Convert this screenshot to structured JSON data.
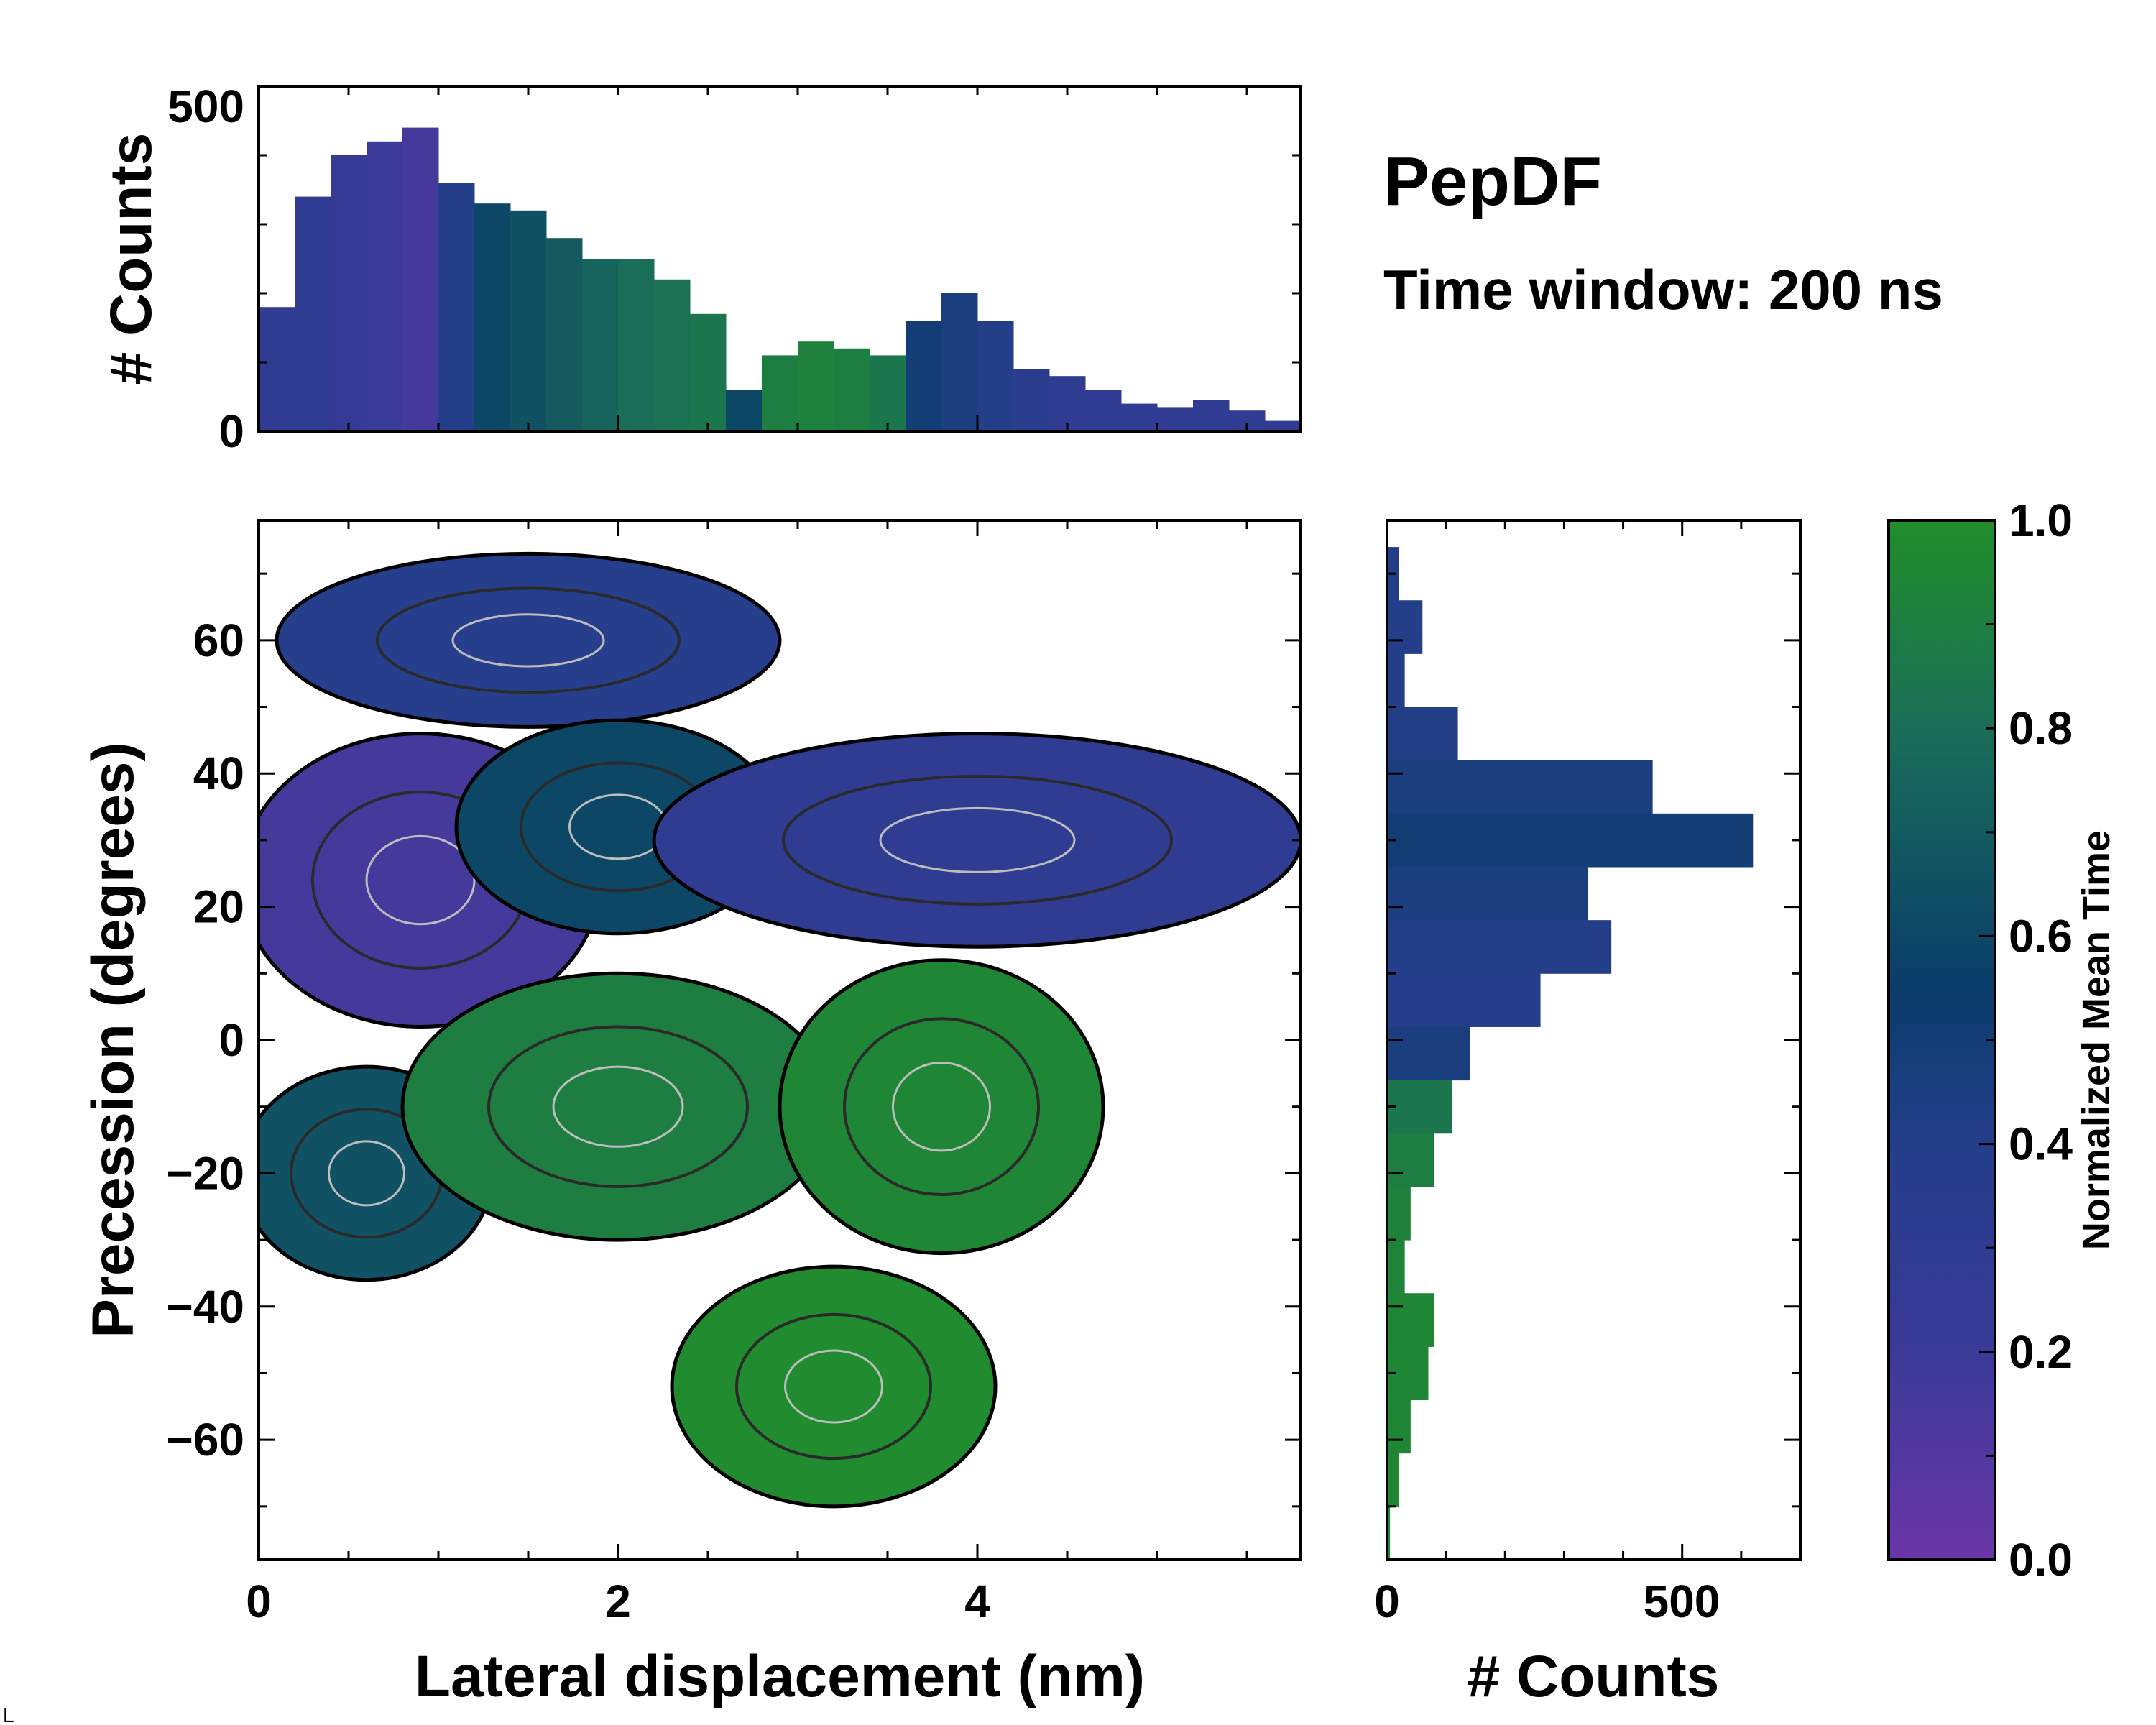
{
  "chart_data": [
    {
      "type": "bar",
      "role": "top-marginal-histogram",
      "ylabel": "# Counts",
      "xlim": [
        0,
        5.8
      ],
      "ylim": [
        0,
        500
      ],
      "yticks": [
        "0",
        "500"
      ],
      "x_centers": [
        0.1,
        0.3,
        0.5,
        0.7,
        0.9,
        1.1,
        1.3,
        1.5,
        1.7,
        1.9,
        2.1,
        2.3,
        2.5,
        2.7,
        2.9,
        3.1,
        3.3,
        3.5,
        3.7,
        3.9,
        4.1,
        4.3,
        4.5,
        4.7,
        4.9,
        5.1,
        5.3,
        5.5,
        5.7
      ],
      "bin_width": 0.2,
      "values": [
        180,
        340,
        400,
        420,
        440,
        360,
        330,
        320,
        280,
        250,
        250,
        220,
        170,
        60,
        110,
        130,
        120,
        110,
        160,
        200,
        160,
        90,
        80,
        60,
        40,
        35,
        45,
        30,
        15
      ],
      "color_values": [
        0.3,
        0.3,
        0.25,
        0.2,
        0.15,
        0.4,
        0.6,
        0.65,
        0.7,
        0.75,
        0.8,
        0.82,
        0.85,
        0.6,
        0.9,
        0.92,
        0.9,
        0.85,
        0.5,
        0.45,
        0.4,
        0.35,
        0.3,
        0.3,
        0.3,
        0.3,
        0.3,
        0.3,
        0.3
      ]
    },
    {
      "type": "heatmap",
      "role": "main-2d-histogram",
      "xlabel": "Lateral displacement (nm)",
      "ylabel": "Precession (degrees)",
      "xlim": [
        0,
        5.8
      ],
      "ylim": [
        -78,
        78
      ],
      "xticks": [
        "0",
        "2",
        "4"
      ],
      "yticks": [
        "−60",
        "−40",
        "−20",
        "0",
        "20",
        "40",
        "60"
      ],
      "regions": [
        {
          "name": "upper-left-cluster",
          "x": 1.5,
          "y": 60,
          "rx": 1.4,
          "ry": 13,
          "value": 0.38
        },
        {
          "name": "main-purple-cluster",
          "x": 0.9,
          "y": 24,
          "rx": 1.0,
          "ry": 22,
          "value": 0.15
        },
        {
          "name": "mid-teal-cluster",
          "x": 2.0,
          "y": 32,
          "rx": 0.9,
          "ry": 16,
          "value": 0.6
        },
        {
          "name": "right-blue-band",
          "x": 4.0,
          "y": 30,
          "rx": 1.8,
          "ry": 16,
          "value": 0.3
        },
        {
          "name": "lower-left-teal",
          "x": 0.6,
          "y": -20,
          "rx": 0.7,
          "ry": 16,
          "value": 0.65
        },
        {
          "name": "green-lower-middle",
          "x": 2.0,
          "y": -10,
          "rx": 1.2,
          "ry": 20,
          "value": 0.9
        },
        {
          "name": "green-right-arm",
          "x": 3.8,
          "y": -10,
          "rx": 0.9,
          "ry": 22,
          "value": 0.95
        },
        {
          "name": "green-bottom-cluster",
          "x": 3.2,
          "y": -52,
          "rx": 0.9,
          "ry": 18,
          "value": 0.98
        }
      ]
    },
    {
      "type": "bar",
      "orientation": "horizontal",
      "role": "right-marginal-histogram",
      "xlabel": "# Counts",
      "xlim": [
        0,
        700
      ],
      "xticks": [
        "0",
        "500"
      ],
      "y_centers": [
        70,
        62,
        54,
        46,
        38,
        30,
        22,
        14,
        6,
        -2,
        -10,
        -18,
        -26,
        -34,
        -42,
        -50,
        -58,
        -66,
        -74
      ],
      "bin_height": 8,
      "values": [
        20,
        60,
        30,
        120,
        450,
        620,
        340,
        380,
        260,
        140,
        110,
        80,
        40,
        30,
        80,
        70,
        40,
        20,
        5
      ],
      "color_values": [
        0.4,
        0.4,
        0.4,
        0.42,
        0.45,
        0.5,
        0.45,
        0.4,
        0.38,
        0.45,
        0.85,
        0.9,
        0.92,
        0.93,
        0.95,
        0.95,
        0.95,
        0.95,
        0.95
      ]
    }
  ],
  "title": "PepDF",
  "subtitle": "Time window: 200 ns",
  "colorbar": {
    "label": "Normalized Mean Time",
    "range": [
      0.0,
      1.0
    ],
    "ticks": [
      "0.0",
      "0.2",
      "0.4",
      "0.6",
      "0.8",
      "1.0"
    ],
    "colors": [
      "#6a36a8",
      "#3a3a98",
      "#243e8a",
      "#0a3d6a",
      "#1a6e58",
      "#218e2a"
    ]
  },
  "corner_mark": "L"
}
